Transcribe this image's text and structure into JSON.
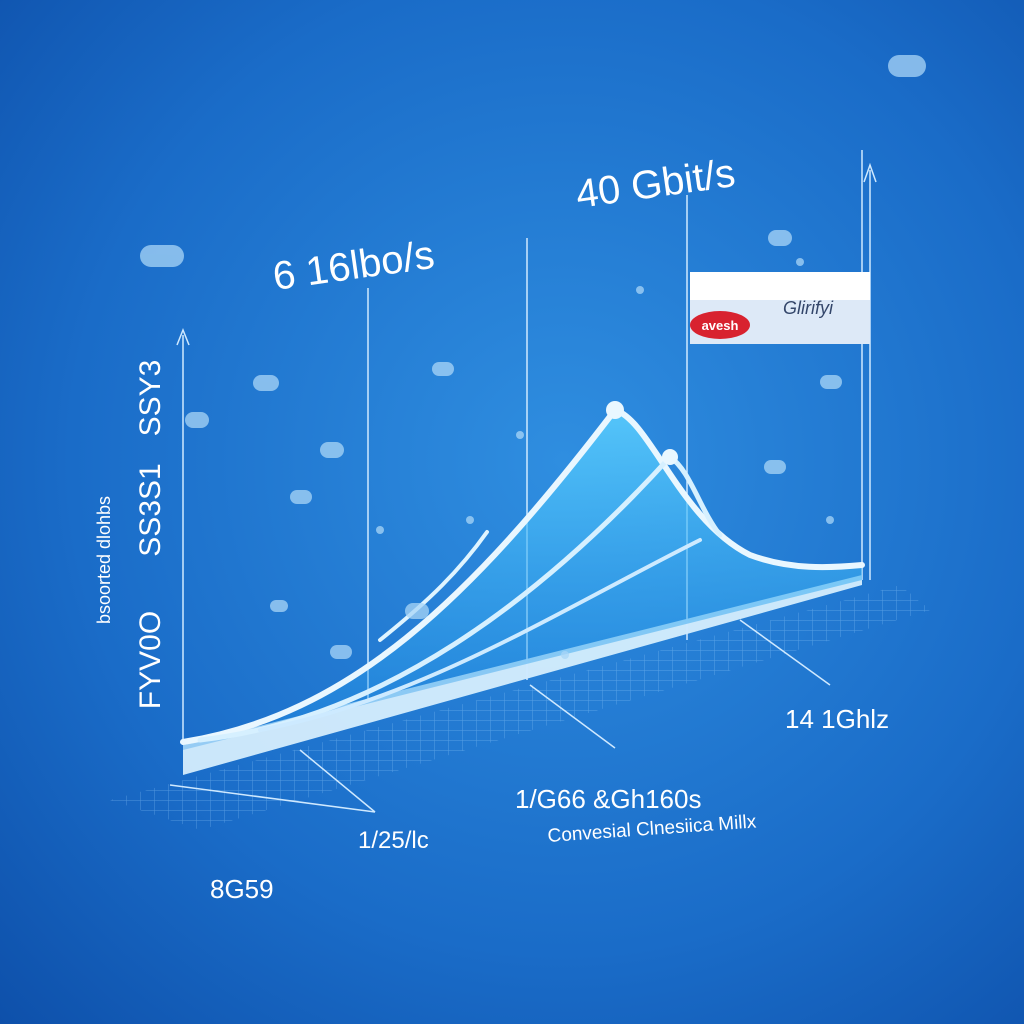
{
  "texts": {
    "left_label": "6 16lbo/s",
    "right_label": "40 Gbit/s",
    "badge_logo": "avesh",
    "badge_text": "Glirifyi",
    "axis_top": "SSY3",
    "axis_middle": "SS3S1",
    "axis_bottom": "FYV0O",
    "axis_title": "bsoorted dlohbs",
    "center_label": "1/G66 &Gh160s",
    "center_caption": "Convesial Clnesiica Millx",
    "right_floor_label": "14 1Ghlz",
    "mid_floor_label": "1/25/lc",
    "left_floor_label": "8G59"
  }
}
